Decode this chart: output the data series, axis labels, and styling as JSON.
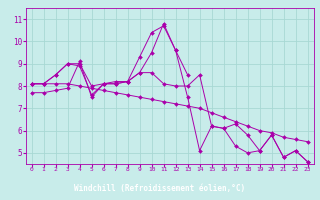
{
  "bg_color": "#c8ecea",
  "line_color": "#aa00aa",
  "grid_color": "#a8d8d4",
  "xlabel": "Windchill (Refroidissement éolien,°C)",
  "xlabel_bg": "#550077",
  "ylabel_ticks": [
    5,
    6,
    7,
    8,
    9,
    10,
    11
  ],
  "xticks": [
    0,
    1,
    2,
    3,
    4,
    5,
    6,
    7,
    8,
    9,
    10,
    11,
    12,
    13,
    14,
    15,
    16,
    17,
    18,
    19,
    20,
    21,
    22,
    23
  ],
  "ylim": [
    4.5,
    11.5
  ],
  "xlim": [
    -0.5,
    23.5
  ],
  "series": [
    [
      7.7,
      7.7,
      7.8,
      7.9,
      9.1,
      7.5,
      8.1,
      8.2,
      8.2,
      8.6,
      8.6,
      8.1,
      8.0,
      8.0,
      8.5,
      6.2,
      6.1,
      6.3,
      5.8,
      5.1,
      5.8,
      4.8,
      5.1,
      4.6
    ],
    [
      8.1,
      8.1,
      8.5,
      9.0,
      9.0,
      8.0,
      8.1,
      8.1,
      8.2,
      9.3,
      10.4,
      10.7,
      9.6,
      8.5,
      null,
      null,
      null,
      null,
      null,
      null,
      null,
      null,
      null,
      null
    ],
    [
      8.1,
      8.1,
      8.5,
      9.0,
      8.9,
      7.6,
      8.1,
      8.1,
      8.2,
      8.6,
      9.5,
      10.8,
      9.6,
      7.5,
      5.1,
      6.2,
      6.1,
      5.3,
      5.0,
      5.1,
      5.8,
      4.8,
      5.1,
      4.6
    ],
    [
      8.1,
      8.1,
      8.1,
      8.1,
      8.0,
      7.9,
      7.8,
      7.7,
      7.6,
      7.5,
      7.4,
      7.3,
      7.2,
      7.1,
      7.0,
      6.8,
      6.6,
      6.4,
      6.2,
      6.0,
      5.9,
      5.7,
      5.6,
      5.5
    ]
  ]
}
